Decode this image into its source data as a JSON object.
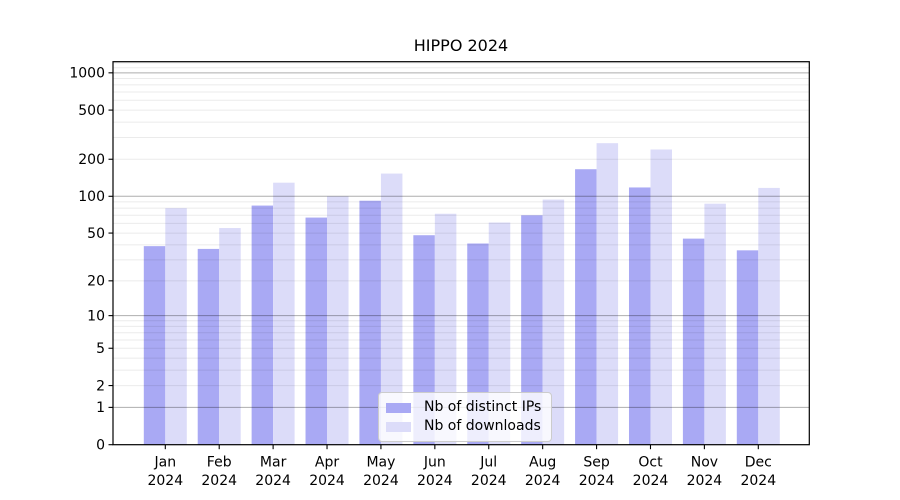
{
  "chart_data": {
    "type": "bar",
    "title": "HIPPO 2024",
    "categories": [
      "Jan",
      "Feb",
      "Mar",
      "Apr",
      "May",
      "Jun",
      "Jul",
      "Aug",
      "Sep",
      "Oct",
      "Nov",
      "Dec"
    ],
    "x_tick_year": "2024",
    "series": [
      {
        "name": "Nb of distinct IPs",
        "color": "#a9a9f4",
        "values": [
          39,
          37,
          84,
          67,
          92,
          48,
          41,
          70,
          166,
          118,
          45,
          36
        ]
      },
      {
        "name": "Nb of downloads",
        "color": "#dcdcf9",
        "values": [
          80,
          55,
          129,
          100,
          153,
          72,
          61,
          94,
          270,
          240,
          87,
          117
        ]
      }
    ],
    "y_ticks": [
      0,
      1,
      2,
      5,
      10,
      20,
      50,
      100,
      200,
      500,
      1000
    ],
    "y_major_gridlines": [
      1,
      10,
      100,
      1000
    ],
    "y_scale": "symlog-log1p",
    "ylim": [
      0,
      1230
    ],
    "xlabel": "",
    "ylabel": "",
    "grid": "horizontal major+minor, drawn above bars",
    "legend_position": "lower center inside plot"
  },
  "colors": {
    "background": "#ffffff",
    "bar_ips": "#a9a9f4",
    "bar_downloads": "#dcdcf9",
    "major_grid": "rgba(0,0,0,0.32)",
    "minor_grid": "rgba(0,0,0,0.08)",
    "axis": "#000000",
    "legend_border": "#cccccc"
  }
}
